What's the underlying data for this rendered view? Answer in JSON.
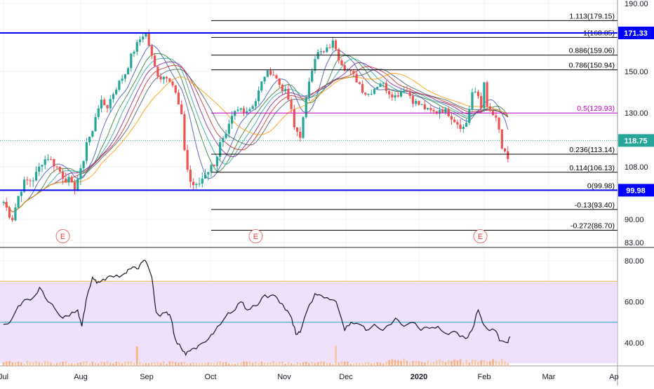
{
  "chart_data": [
    {
      "type": "candlestick",
      "panel": "price",
      "title": "",
      "y_axis": {
        "position": "right",
        "ticks": [
          190.0,
          150.0,
          130.0,
          108.0,
          90.0,
          83.0
        ],
        "ylim": [
          80,
          195
        ]
      },
      "x_axis": {
        "ticks": [
          "Jul",
          "Aug",
          "Sep",
          "Oct",
          "Nov",
          "Dec",
          "2020",
          "Feb",
          "Mar",
          "Ap"
        ]
      },
      "last_price": {
        "value": 118.75,
        "label": "118.75",
        "color": "#26a69a"
      },
      "horizontal_levels": [
        {
          "value": 171.33,
          "label": "171.33",
          "color": "#0000ff"
        },
        {
          "value": 99.98,
          "label": "99.98",
          "color": "#0000ff"
        }
      ],
      "fibonacci": {
        "levels": [
          {
            "ratio": "1.113",
            "value": 179.15,
            "label": "1.113(179.15)"
          },
          {
            "ratio": "1",
            "value": 168.85,
            "label": "1(168.85)"
          },
          {
            "ratio": "0.886",
            "value": 159.06,
            "label": "0.886(159.06)"
          },
          {
            "ratio": "0.786",
            "value": 150.94,
            "label": "0.786(150.94)"
          },
          {
            "ratio": "0.5",
            "value": 129.93,
            "label": "0.5(129.93)",
            "color": "#c000c0"
          },
          {
            "ratio": "0.236",
            "value": 113.14,
            "label": "0.236(113.14)"
          },
          {
            "ratio": "0.114",
            "value": 106.13,
            "label": "0.114(106.13)"
          },
          {
            "ratio": "0",
            "value": 99.98,
            "label": "0(99.98)"
          },
          {
            "ratio": "-0.13",
            "value": 93.4,
            "label": "-0.13(93.40)"
          },
          {
            "ratio": "-0.272",
            "value": 86.7,
            "label": "-0.272(86.70)"
          }
        ]
      },
      "earnings_markers": [
        {
          "label": "E",
          "date": "2019-07-29"
        },
        {
          "label": "E",
          "date": "2019-10-28"
        },
        {
          "label": "E",
          "date": "2020-02-11"
        }
      ],
      "price_path": [
        [
          "2019-07-01",
          96
        ],
        [
          "2019-07-03",
          93
        ],
        [
          "2019-07-05",
          90
        ],
        [
          "2019-07-08",
          98
        ],
        [
          "2019-07-10",
          102
        ],
        [
          "2019-07-12",
          103
        ],
        [
          "2019-07-15",
          104
        ],
        [
          "2019-07-17",
          106
        ],
        [
          "2019-07-19",
          110
        ],
        [
          "2019-07-22",
          112
        ],
        [
          "2019-07-24",
          110
        ],
        [
          "2019-07-26",
          108
        ],
        [
          "2019-07-29",
          105
        ],
        [
          "2019-08-01",
          103
        ],
        [
          "2019-08-03",
          100
        ],
        [
          "2019-08-05",
          104
        ],
        [
          "2019-08-07",
          107
        ],
        [
          "2019-08-09",
          118
        ],
        [
          "2019-08-12",
          122
        ],
        [
          "2019-08-14",
          132
        ],
        [
          "2019-08-16",
          135
        ],
        [
          "2019-08-19",
          133
        ],
        [
          "2019-08-21",
          138
        ],
        [
          "2019-08-23",
          142
        ],
        [
          "2019-08-26",
          147
        ],
        [
          "2019-08-28",
          150
        ],
        [
          "2019-08-30",
          158
        ],
        [
          "2019-09-02",
          165
        ],
        [
          "2019-09-04",
          169
        ],
        [
          "2019-09-06",
          172
        ],
        [
          "2019-09-09",
          158
        ],
        [
          "2019-09-11",
          150
        ],
        [
          "2019-09-13",
          147
        ],
        [
          "2019-09-16",
          148
        ],
        [
          "2019-09-18",
          146
        ],
        [
          "2019-09-20",
          140
        ],
        [
          "2019-09-23",
          128
        ],
        [
          "2019-09-25",
          110
        ],
        [
          "2019-09-27",
          103
        ],
        [
          "2019-09-30",
          101
        ],
        [
          "2019-10-02",
          103
        ],
        [
          "2019-10-04",
          106
        ],
        [
          "2019-10-07",
          108
        ],
        [
          "2019-10-09",
          110
        ],
        [
          "2019-10-11",
          117
        ],
        [
          "2019-10-14",
          120
        ],
        [
          "2019-10-16",
          126
        ],
        [
          "2019-10-18",
          130
        ],
        [
          "2019-10-21",
          132
        ],
        [
          "2019-10-23",
          131
        ],
        [
          "2019-10-25",
          132
        ],
        [
          "2019-10-28",
          136
        ],
        [
          "2019-10-30",
          142
        ],
        [
          "2019-11-01",
          148
        ],
        [
          "2019-11-04",
          150
        ],
        [
          "2019-11-06",
          148
        ],
        [
          "2019-11-08",
          144
        ],
        [
          "2019-11-11",
          140
        ],
        [
          "2019-11-13",
          135
        ],
        [
          "2019-11-15",
          124
        ],
        [
          "2019-11-18",
          121
        ],
        [
          "2019-11-20",
          130
        ],
        [
          "2019-11-22",
          145
        ],
        [
          "2019-11-25",
          158
        ],
        [
          "2019-11-27",
          161
        ],
        [
          "2019-11-29",
          160
        ],
        [
          "2019-12-02",
          164
        ],
        [
          "2019-12-04",
          167
        ],
        [
          "2019-12-06",
          158
        ],
        [
          "2019-12-09",
          152
        ],
        [
          "2019-12-11",
          150
        ],
        [
          "2019-12-13",
          148
        ],
        [
          "2019-12-16",
          144
        ],
        [
          "2019-12-18",
          140
        ],
        [
          "2019-12-20",
          139
        ],
        [
          "2019-12-23",
          142
        ],
        [
          "2019-12-26",
          145
        ],
        [
          "2019-12-30",
          140
        ],
        [
          "2020-01-02",
          138
        ],
        [
          "2020-01-06",
          142
        ],
        [
          "2020-01-08",
          140
        ],
        [
          "2020-01-10",
          136
        ],
        [
          "2020-01-13",
          134
        ],
        [
          "2020-01-15",
          133
        ],
        [
          "2020-01-17",
          131
        ],
        [
          "2020-01-21",
          130
        ],
        [
          "2020-01-23",
          132
        ],
        [
          "2020-01-27",
          130
        ],
        [
          "2020-01-29",
          128
        ],
        [
          "2020-01-31",
          126
        ],
        [
          "2020-02-03",
          124
        ],
        [
          "2020-02-05",
          127
        ],
        [
          "2020-02-07",
          140
        ],
        [
          "2020-02-10",
          138
        ],
        [
          "2020-02-12",
          130
        ],
        [
          "2020-02-13",
          150
        ],
        [
          "2020-02-14",
          132
        ],
        [
          "2020-02-18",
          128
        ],
        [
          "2020-02-19",
          125
        ],
        [
          "2020-02-20",
          122
        ],
        [
          "2020-02-21",
          116
        ],
        [
          "2020-02-24",
          110
        ],
        [
          "2020-02-25",
          118.75
        ]
      ]
    },
    {
      "type": "line",
      "panel": "rsi",
      "title": "",
      "y_axis": {
        "position": "right",
        "ticks": [
          80.0,
          60.0,
          40.0
        ],
        "ylim": [
          31,
          83
        ]
      },
      "band": {
        "upper": 70,
        "lower": 30,
        "fill": "#ead7fb",
        "upper_color": "#ffb74d"
      },
      "midline": {
        "value": 50,
        "color": "#26a6c6"
      },
      "series": [
        {
          "name": "",
          "points": [
            [
              "2019-07-01",
              49
            ],
            [
              "2019-07-04",
              50
            ],
            [
              "2019-07-08",
              58
            ],
            [
              "2019-07-11",
              61
            ],
            [
              "2019-07-15",
              62
            ],
            [
              "2019-07-18",
              67
            ],
            [
              "2019-07-22",
              60
            ],
            [
              "2019-07-25",
              57
            ],
            [
              "2019-07-29",
              52
            ],
            [
              "2019-08-01",
              53
            ],
            [
              "2019-08-05",
              56
            ],
            [
              "2019-08-07",
              48
            ],
            [
              "2019-08-09",
              61
            ],
            [
              "2019-08-12",
              72
            ],
            [
              "2019-08-14",
              69
            ],
            [
              "2019-08-16",
              70
            ],
            [
              "2019-08-19",
              72
            ],
            [
              "2019-08-22",
              72
            ],
            [
              "2019-08-26",
              73
            ],
            [
              "2019-08-28",
              74
            ],
            [
              "2019-08-30",
              76
            ],
            [
              "2019-09-02",
              76
            ],
            [
              "2019-09-04",
              79
            ],
            [
              "2019-09-06",
              80
            ],
            [
              "2019-09-09",
              72
            ],
            [
              "2019-09-11",
              55
            ],
            [
              "2019-09-13",
              53
            ],
            [
              "2019-09-16",
              55
            ],
            [
              "2019-09-18",
              52
            ],
            [
              "2019-09-20",
              42
            ],
            [
              "2019-09-23",
              37
            ],
            [
              "2019-09-25",
              34
            ],
            [
              "2019-09-27",
              36
            ],
            [
              "2019-09-30",
              37
            ],
            [
              "2019-10-03",
              40
            ],
            [
              "2019-10-07",
              44
            ],
            [
              "2019-10-10",
              48
            ],
            [
              "2019-10-14",
              53
            ],
            [
              "2019-10-17",
              55
            ],
            [
              "2019-10-21",
              60
            ],
            [
              "2019-10-24",
              56
            ],
            [
              "2019-10-28",
              58
            ],
            [
              "2019-10-31",
              62
            ],
            [
              "2019-11-04",
              63
            ],
            [
              "2019-11-07",
              62
            ],
            [
              "2019-11-11",
              56
            ],
            [
              "2019-11-14",
              52
            ],
            [
              "2019-11-16",
              44
            ],
            [
              "2019-11-18",
              45
            ],
            [
              "2019-11-21",
              55
            ],
            [
              "2019-11-25",
              64
            ],
            [
              "2019-11-28",
              63
            ],
            [
              "2019-12-02",
              61
            ],
            [
              "2019-12-05",
              60
            ],
            [
              "2019-12-09",
              46
            ],
            [
              "2019-12-12",
              50
            ],
            [
              "2019-12-16",
              49
            ],
            [
              "2019-12-19",
              46
            ],
            [
              "2019-12-23",
              49
            ],
            [
              "2019-12-27",
              46
            ],
            [
              "2020-01-02",
              52
            ],
            [
              "2020-01-06",
              48
            ],
            [
              "2020-01-10",
              50
            ],
            [
              "2020-01-14",
              46
            ],
            [
              "2020-01-18",
              47
            ],
            [
              "2020-01-22",
              48
            ],
            [
              "2020-01-27",
              44
            ],
            [
              "2020-01-31",
              45
            ],
            [
              "2020-02-04",
              42
            ],
            [
              "2020-02-07",
              46
            ],
            [
              "2020-02-10",
              56
            ],
            [
              "2020-02-12",
              50
            ],
            [
              "2020-02-14",
              47
            ],
            [
              "2020-02-18",
              46
            ],
            [
              "2020-02-20",
              41
            ],
            [
              "2020-02-24",
              40
            ],
            [
              "2020-02-25",
              43
            ]
          ]
        }
      ]
    }
  ]
}
